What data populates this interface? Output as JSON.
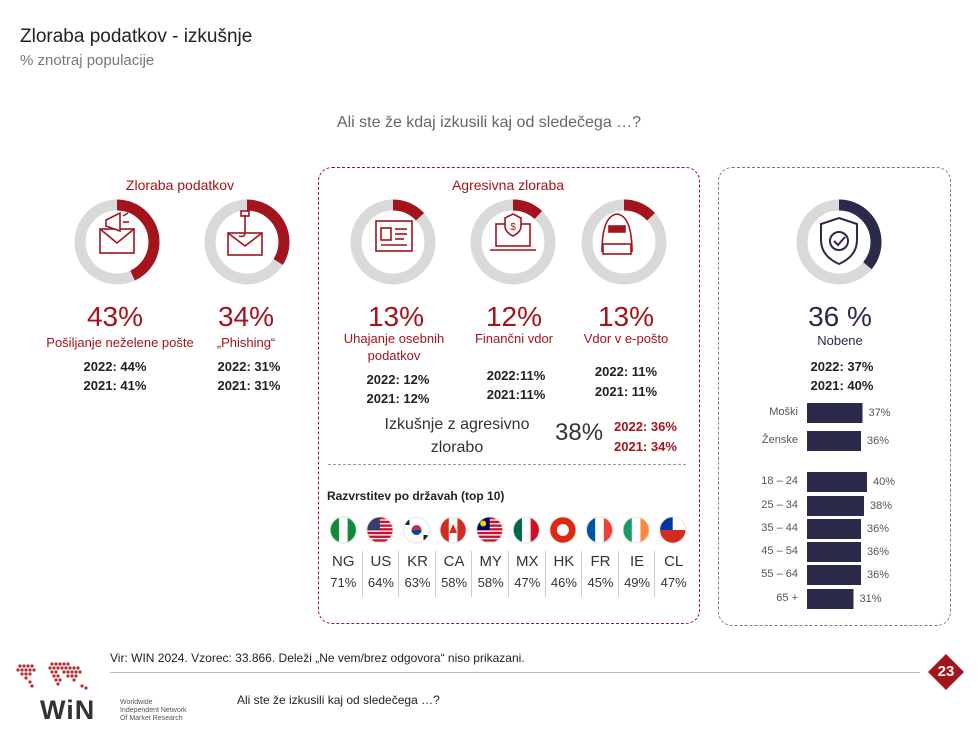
{
  "header": {
    "title": "Zloraba podatkov - izkušnje",
    "subtitle": "% znotraj populacije",
    "question": "Ali ste že kdaj izkusili kaj od sledečega …?"
  },
  "groups": {
    "misuse_label": "Zloraba podatkov",
    "aggressive_label": "Agresivna zloraba"
  },
  "colors": {
    "accent": "#a3141d",
    "navy": "#2c2a4a",
    "ring_bg": "#d9d9d9"
  },
  "chart_data": [
    {
      "type": "donut",
      "items": [
        {
          "id": "spam",
          "value": 43,
          "value_label": "43%",
          "label": "Pošiljanje neželene pošte",
          "y2022": "2022: 44%",
          "y2021": "2021: 41%",
          "icon": "envelope-megaphone-icon"
        },
        {
          "id": "phishing",
          "value": 34,
          "value_label": "34%",
          "label": "„Phishing“",
          "y2022": "2022: 31%",
          "y2021": "2021: 31%",
          "icon": "envelope-hook-icon"
        },
        {
          "id": "identity",
          "value": 13,
          "value_label": "13%",
          "label_lines": [
            "Uhajanje osebnih",
            "podatkov"
          ],
          "y2022": "2022: 12%",
          "y2021": "2021: 12%",
          "icon": "id-card-icon"
        },
        {
          "id": "financial",
          "value": 12,
          "value_label": "12%",
          "label": "Finančni vdor",
          "y2022": "2022:11%",
          "y2021": "2021:11%",
          "icon": "laptop-shield-icon"
        },
        {
          "id": "email",
          "value": 13,
          "value_label": "13%",
          "label": "Vdor v e-pošto",
          "y2022": "2022: 11%",
          "y2021": "2021: 11%",
          "icon": "hacker-icon"
        },
        {
          "id": "none",
          "value": 36,
          "value_label": "36 %",
          "label": "Nobene",
          "y2022": "2022: 37%",
          "y2021": "2021: 40%",
          "icon": "shield-check-icon"
        }
      ]
    },
    {
      "type": "table",
      "title": "Razvrstitev po državah (top 10)",
      "columns": [
        "NG",
        "US",
        "KR",
        "CA",
        "MY",
        "MX",
        "HK",
        "FR",
        "IE",
        "CL"
      ],
      "values": [
        71,
        64,
        63,
        58,
        58,
        47,
        46,
        45,
        49,
        47
      ],
      "value_labels": [
        "71%",
        "64%",
        "63%",
        "58%",
        "58%",
        "47%",
        "46%",
        "45%",
        "49%",
        "47%"
      ]
    },
    {
      "type": "bar",
      "orientation": "horizontal",
      "categories": [
        "Moški",
        "Ženske",
        "18 – 24",
        "25 – 34",
        "35 – 44",
        "45 – 54",
        "55 – 64",
        "65 +"
      ],
      "values": [
        37,
        36,
        40,
        38,
        36,
        36,
        36,
        31
      ],
      "value_labels": [
        "37%",
        "36%",
        "40%",
        "38%",
        "36%",
        "36%",
        "36%",
        "31%"
      ]
    }
  ],
  "aggressive_summary": {
    "label_lines": [
      "Izkušnje z agresivno",
      "zlorabo"
    ],
    "value": "38%",
    "y2022": "2022: 36%",
    "y2021": "2021: 34%"
  },
  "footer": {
    "source": "Vir: WIN 2024. Vzorec: 33.866. Deleži „Ne vem/brez odgovora“ niso prikazani.",
    "question": "Ali ste že izkusili kaj od sledečega …?",
    "page_number": "23",
    "logo_text": "WiN",
    "logo_sub": [
      "Worldwide",
      "Independent Network",
      "Of Market Research"
    ]
  }
}
